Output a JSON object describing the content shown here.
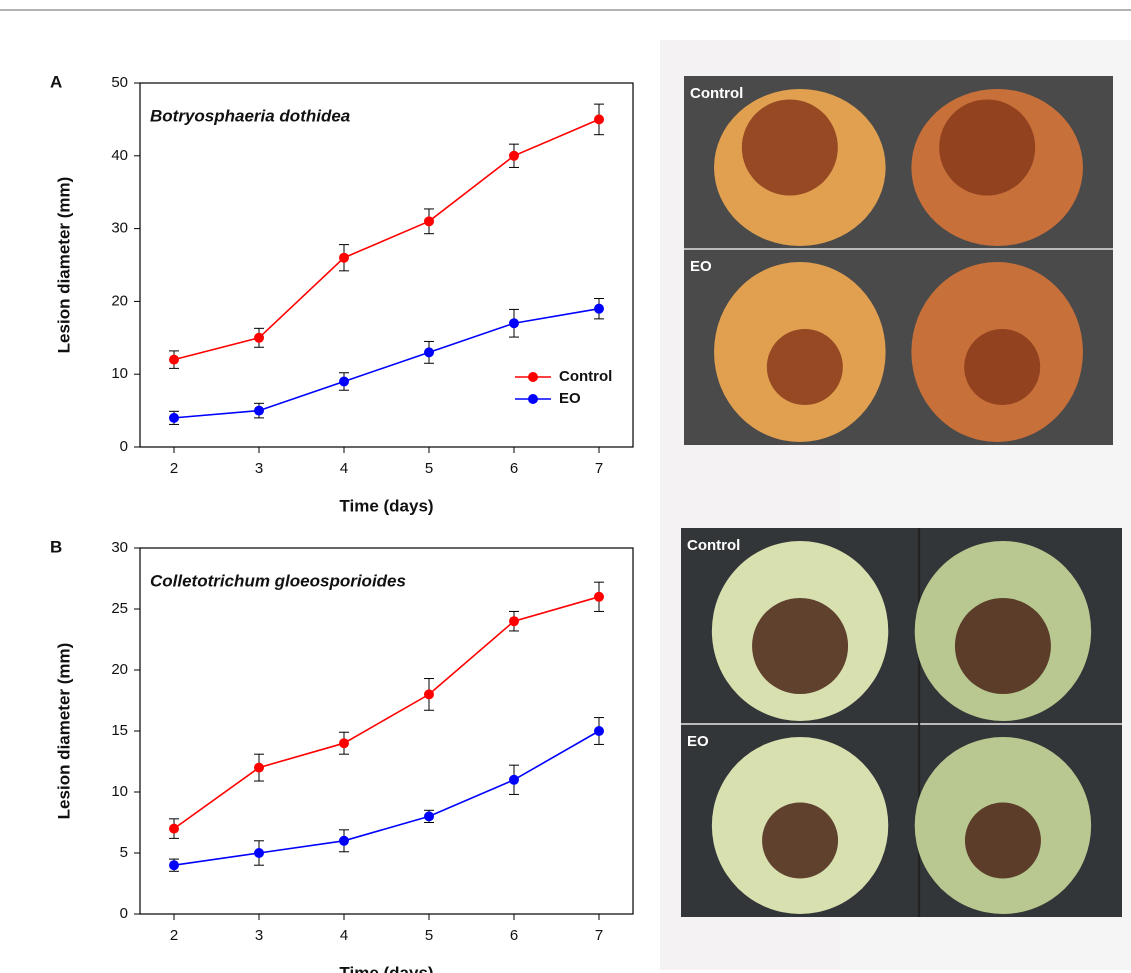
{
  "chart_data": [
    {
      "type": "line",
      "label": "A",
      "title": "Botryosphaeria dothidea",
      "x_label": "Time (days)",
      "y_label": "Lesion diameter (mm)",
      "x": [
        2,
        3,
        4,
        5,
        6,
        7
      ],
      "xlim": [
        1.6,
        7.4
      ],
      "xticks": [
        2,
        3,
        4,
        5,
        6,
        7
      ],
      "ylim": [
        0,
        50
      ],
      "yticks": [
        0,
        10,
        20,
        30,
        40,
        50
      ],
      "legend": "lower right",
      "series": [
        {
          "name": "Control",
          "color": "#ff0000",
          "values": [
            12,
            15,
            26,
            31,
            40,
            45
          ],
          "errors": [
            1.2,
            1.3,
            1.8,
            1.7,
            1.6,
            2.1
          ]
        },
        {
          "name": "EO",
          "color": "#0000ff",
          "values": [
            4,
            5,
            9,
            13,
            17,
            19
          ],
          "errors": [
            0.9,
            1.0,
            1.2,
            1.5,
            1.9,
            1.4
          ]
        }
      ]
    },
    {
      "type": "line",
      "label": "B",
      "title": "Colletotrichum gloeosporioides",
      "x_label": "Time (days)",
      "y_label": "Lesion diameter (mm)",
      "x": [
        2,
        3,
        4,
        5,
        6,
        7
      ],
      "xlim": [
        1.6,
        7.4
      ],
      "xticks": [
        2,
        3,
        4,
        5,
        6,
        7
      ],
      "ylim": [
        0,
        30
      ],
      "yticks": [
        0,
        5,
        10,
        15,
        20,
        25,
        30
      ],
      "series": [
        {
          "name": "Control",
          "color": "#ff0000",
          "values": [
            7,
            12,
            14,
            18,
            24,
            26
          ],
          "errors": [
            0.8,
            1.1,
            0.9,
            1.3,
            0.8,
            1.2
          ]
        },
        {
          "name": "EO",
          "color": "#0000ff",
          "values": [
            4,
            5,
            6,
            8,
            11,
            15
          ],
          "errors": [
            0.5,
            1.0,
            0.9,
            0.5,
            1.2,
            1.1
          ]
        }
      ]
    }
  ],
  "photos": [
    {
      "labels": [
        "Control",
        "EO"
      ]
    },
    {
      "labels": [
        "Control",
        "EO"
      ]
    }
  ]
}
